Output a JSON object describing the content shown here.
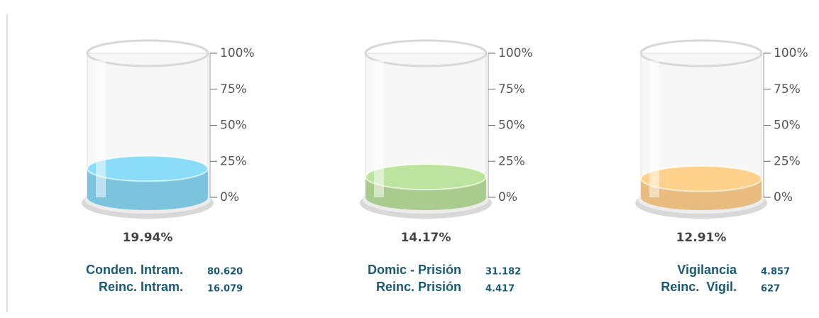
{
  "chart_data": [
    {
      "type": "cylinder",
      "value": 19.94,
      "value_label": "19.94%",
      "color": "#7cc4de",
      "ylim": [
        0,
        100
      ],
      "yticks": [
        {
          "value": 0,
          "label": "0%"
        },
        {
          "value": 25,
          "label": "25%"
        },
        {
          "value": 50,
          "label": "50%"
        },
        {
          "value": 75,
          "label": "75%"
        },
        {
          "value": 100,
          "label": "100%"
        }
      ],
      "stats": [
        {
          "name": "Conden. Intram.",
          "value": 80620,
          "value_label": "80.620"
        },
        {
          "name": "Reinc. Intram.",
          "value": 16079,
          "value_label": "16.079"
        }
      ]
    },
    {
      "type": "cylinder",
      "value": 14.17,
      "value_label": "14.17%",
      "color": "#a9cc8e",
      "ylim": [
        0,
        100
      ],
      "yticks": [
        {
          "value": 0,
          "label": "0%"
        },
        {
          "value": 25,
          "label": "25%"
        },
        {
          "value": 50,
          "label": "50%"
        },
        {
          "value": 75,
          "label": "75%"
        },
        {
          "value": 100,
          "label": "100%"
        }
      ],
      "stats": [
        {
          "name": "Domic - Prisión",
          "value": 31182,
          "value_label": "31.182"
        },
        {
          "name": "Reinc. Prisión",
          "value": 4417,
          "value_label": "4.417"
        }
      ]
    },
    {
      "type": "cylinder",
      "value": 12.91,
      "value_label": "12.91%",
      "color": "#e8bb7e",
      "ylim": [
        0,
        100
      ],
      "yticks": [
        {
          "value": 0,
          "label": "0%"
        },
        {
          "value": 25,
          "label": "25%"
        },
        {
          "value": 50,
          "label": "50%"
        },
        {
          "value": 75,
          "label": "75%"
        },
        {
          "value": 100,
          "label": "100%"
        }
      ],
      "stats": [
        {
          "name": "Vigilancia",
          "value": 4857,
          "value_label": "4.857"
        },
        {
          "name": "Reinc.  Vigil.",
          "value": 627,
          "value_label": "627"
        }
      ]
    }
  ]
}
